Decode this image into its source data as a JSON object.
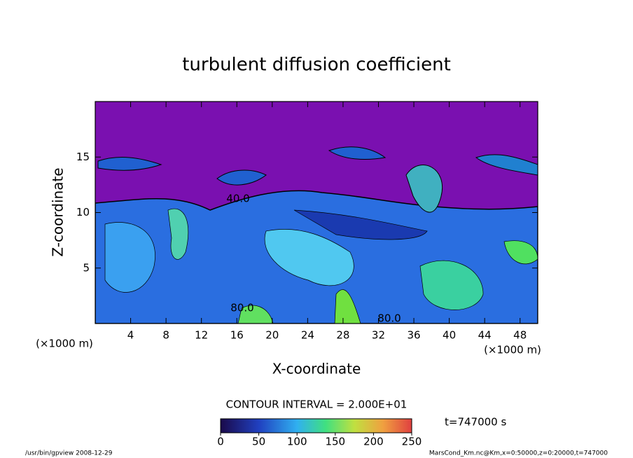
{
  "chart_data": {
    "type": "heatmap",
    "title": "turbulent diffusion coefficient",
    "x_label": "X-coordinate",
    "y_label": "Z-coordinate",
    "x_unit": "(×1000 m)",
    "y_unit": "(×1000 m)",
    "xlim": [
      0,
      50
    ],
    "xticks": [
      4,
      8,
      12,
      16,
      20,
      24,
      28,
      32,
      36,
      40,
      44,
      48
    ],
    "ylim": [
      0,
      20
    ],
    "yticks": [
      5,
      10,
      15
    ],
    "contour_labels": [
      "40.0",
      "80.0",
      "80.0"
    ],
    "contour_interval": "CONTOUR INTERVAL = 2.000E+01",
    "colorbar": {
      "lim": [
        0,
        250
      ],
      "ticks": [
        0,
        50,
        100,
        150,
        200,
        250
      ]
    },
    "time": "t=747000 s",
    "footer_left": "/usr/bin/gpview  2008-12-29",
    "footer_right": "MarsCond_Km.nc@Km,x=0:50000,z=0:20000,t=747000"
  }
}
